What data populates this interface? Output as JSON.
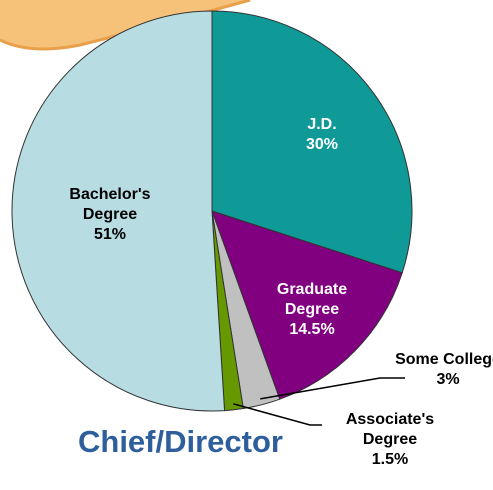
{
  "chart_data": {
    "type": "pie",
    "title": "Chief/Director",
    "categories": [
      "J.D.",
      "Graduate Degree",
      "Some College",
      "Associate's Degree",
      "Bachelor's Degree"
    ],
    "values": [
      30,
      14.5,
      3,
      1.5,
      51
    ],
    "value_labels": [
      "30%",
      "14.5%",
      "3%",
      "1.5%",
      "51%"
    ],
    "colors": [
      "#0f9a98",
      "#800080",
      "#c0c0c0",
      "#669900",
      "#b7dde2"
    ]
  }
}
